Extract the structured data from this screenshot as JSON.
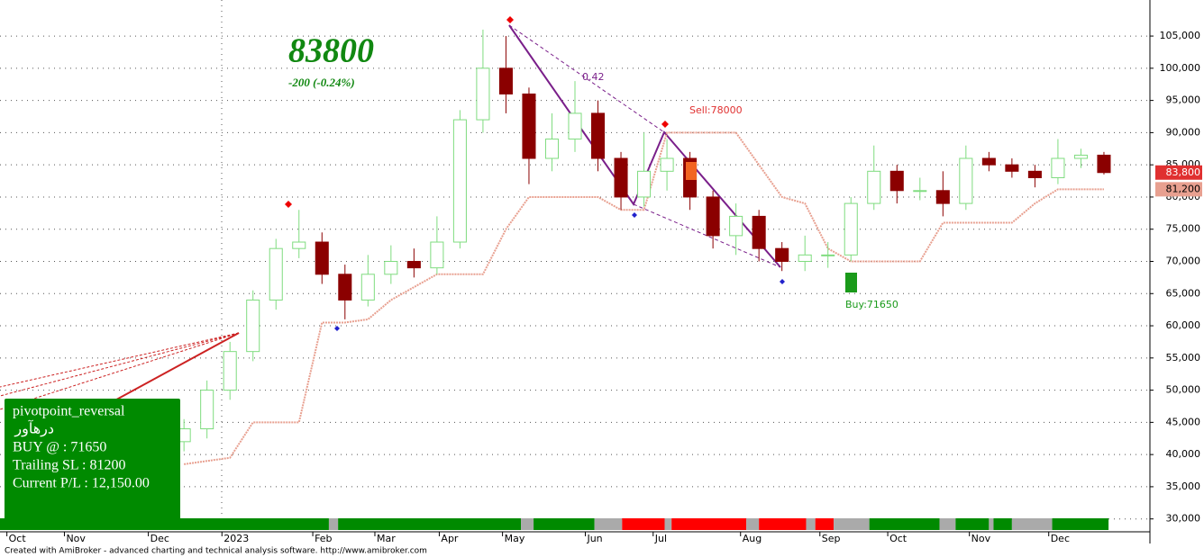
{
  "chart_data": {
    "type": "candlestick",
    "headline": "83800",
    "change": "-200 (-0.24%)",
    "annotations": {
      "sell": "Sell:78000",
      "buy": "Buy:71650",
      "ratio": "0.42"
    },
    "info_box": [
      "pivotpoint_reversal",
      "درهآور",
      "BUY @  : 71650",
      "Trailing SL : 81200",
      "Current P/L : 12,150.00"
    ],
    "footer": "Created with AmiBroker - advanced charting and technical analysis software. http://www.amibroker.com",
    "last_price": {
      "value": 83800,
      "label": "83,800"
    },
    "stop_price": {
      "value": 81200,
      "label": "81,200"
    },
    "up_color": "#7fdc7f",
    "down_color": "#8b0000",
    "stop_color": "#e8a090",
    "x": [
      16,
      18,
      20,
      22,
      24,
      26,
      28,
      30,
      32,
      34,
      36,
      38,
      40,
      42,
      44,
      46,
      48,
      50,
      52,
      54,
      56,
      58,
      60,
      62,
      64,
      66,
      68,
      70,
      72,
      74,
      76,
      78,
      80,
      82,
      84,
      86,
      88,
      90,
      92,
      94,
      96
    ],
    "open": [
      42000,
      44000,
      50000,
      56000,
      64000,
      72000,
      73000,
      68000,
      64000,
      68000,
      70000,
      69000,
      73000,
      92000,
      100000,
      96000,
      86000,
      89000,
      93000,
      86000,
      80000,
      84000,
      86000,
      80000,
      74000,
      77000,
      72000,
      70000,
      71000,
      71000,
      79000,
      84000,
      81000,
      81000,
      79000,
      86000,
      85000,
      84000,
      83000,
      86000,
      86500
    ],
    "high": [
      45500,
      51500,
      57500,
      65500,
      73500,
      78000,
      74500,
      69500,
      71000,
      72500,
      72000,
      77000,
      93500,
      106000,
      105000,
      97000,
      93000,
      98000,
      95000,
      87000,
      90000,
      89000,
      87000,
      81000,
      79000,
      78000,
      73000,
      74000,
      73000,
      80000,
      88000,
      85000,
      83000,
      84000,
      88000,
      87000,
      86000,
      85000,
      89000,
      87500,
      87000
    ],
    "low": [
      40500,
      42500,
      48500,
      54500,
      62500,
      70500,
      66500,
      61000,
      63000,
      66500,
      67500,
      68000,
      72000,
      90000,
      93000,
      82000,
      84000,
      87000,
      84000,
      78000,
      78500,
      81000,
      78000,
      72000,
      71000,
      70000,
      68500,
      68500,
      69000,
      70000,
      78000,
      79000,
      79500,
      77000,
      78000,
      84000,
      83000,
      81500,
      82000,
      84500,
      83500
    ],
    "close": [
      44000,
      50000,
      56000,
      64000,
      72000,
      73000,
      68000,
      64000,
      68000,
      70000,
      69000,
      73000,
      92000,
      100000,
      96000,
      86000,
      89000,
      93000,
      86000,
      80000,
      84000,
      86000,
      80000,
      74000,
      77000,
      72000,
      70000,
      71000,
      71000,
      79000,
      84000,
      81000,
      81000,
      79000,
      86000,
      85000,
      84000,
      83000,
      86000,
      86500,
      83800
    ],
    "stop": [
      38500,
      39000,
      39500,
      45000,
      45000,
      45000,
      60500,
      60500,
      61000,
      64000,
      66000,
      68000,
      68000,
      68000,
      75000,
      80000,
      80000,
      80000,
      80000,
      78000,
      78000,
      90000,
      90000,
      90000,
      90000,
      85000,
      80000,
      79000,
      72000,
      70000,
      70000,
      70000,
      70000,
      76000,
      76000,
      76000,
      76000,
      79000,
      81200,
      81200,
      81200
    ],
    "ribbon": [
      {
        "from": 0,
        "to": 28.6,
        "color": "#008a00"
      },
      {
        "from": 28.6,
        "to": 29.4,
        "color": "#aaaaaa"
      },
      {
        "from": 29.4,
        "to": 45.3,
        "color": "#008a00"
      },
      {
        "from": 45.3,
        "to": 46.4,
        "color": "#aaaaaa"
      },
      {
        "from": 46.4,
        "to": 51.7,
        "color": "#008a00"
      },
      {
        "from": 51.7,
        "to": 54.1,
        "color": "#aaaaaa"
      },
      {
        "from": 54.1,
        "to": 57.8,
        "color": "#ff0000"
      },
      {
        "from": 57.8,
        "to": 58.4,
        "color": "#aaaaaa"
      },
      {
        "from": 58.4,
        "to": 64.9,
        "color": "#ff0000"
      },
      {
        "from": 64.9,
        "to": 66,
        "color": "#aaaaaa"
      },
      {
        "from": 66,
        "to": 70.1,
        "color": "#ff0000"
      },
      {
        "from": 70.1,
        "to": 70.9,
        "color": "#aaaaaa"
      },
      {
        "from": 70.9,
        "to": 72.5,
        "color": "#ff0000"
      },
      {
        "from": 72.5,
        "to": 75.6,
        "color": "#aaaaaa"
      },
      {
        "from": 75.6,
        "to": 81.7,
        "color": "#008a00"
      },
      {
        "from": 81.7,
        "to": 83.1,
        "color": "#aaaaaa"
      },
      {
        "from": 83.1,
        "to": 86,
        "color": "#008a00"
      },
      {
        "from": 86,
        "to": 86.4,
        "color": "#aaaaaa"
      },
      {
        "from": 86.4,
        "to": 88,
        "color": "#008a00"
      },
      {
        "from": 88,
        "to": 91.5,
        "color": "#aaaaaa"
      },
      {
        "from": 91.5,
        "to": 96.4,
        "color": "#008a00"
      }
    ],
    "xlim": [
      0,
      100
    ],
    "xticks": [
      {
        "value": 0.6,
        "label": "Oct"
      },
      {
        "value": 5.6,
        "label": "Nov"
      },
      {
        "value": 12.9,
        "label": "Dec"
      },
      {
        "value": 19.3,
        "label": "2023"
      },
      {
        "value": 27.2,
        "label": "Feb"
      },
      {
        "value": 32.6,
        "label": "Mar"
      },
      {
        "value": 38.2,
        "label": "Apr"
      },
      {
        "value": 43.7,
        "label": "May"
      },
      {
        "value": 50.9,
        "label": "Jun"
      },
      {
        "value": 56.8,
        "label": "Jul"
      },
      {
        "value": 64.4,
        "label": "Aug"
      },
      {
        "value": 71.3,
        "label": "Sep"
      },
      {
        "value": 77.2,
        "label": "Oct"
      },
      {
        "value": 84.3,
        "label": "Nov"
      },
      {
        "value": 91.2,
        "label": "Dec"
      }
    ],
    "ylim": [
      28000,
      110600
    ],
    "yticks": [
      {
        "value": 30000,
        "label": "30,000"
      },
      {
        "value": 35000,
        "label": "35,000"
      },
      {
        "value": 40000,
        "label": "40,000"
      },
      {
        "value": 45000,
        "label": "45,000"
      },
      {
        "value": 50000,
        "label": "50,000"
      },
      {
        "value": 55000,
        "label": "55,000"
      },
      {
        "value": 60000,
        "label": "60,000"
      },
      {
        "value": 65000,
        "label": "65,000"
      },
      {
        "value": 70000,
        "label": "70,000"
      },
      {
        "value": 75000,
        "label": "75,000"
      },
      {
        "value": 80000,
        "label": "80,000"
      },
      {
        "value": 85000,
        "label": "85,000"
      },
      {
        "value": 90000,
        "label": "90,000"
      },
      {
        "value": 95000,
        "label": "95,000"
      },
      {
        "value": 100000,
        "label": "100,000"
      },
      {
        "value": 105000,
        "label": "105,000"
      }
    ],
    "grid": true
  }
}
